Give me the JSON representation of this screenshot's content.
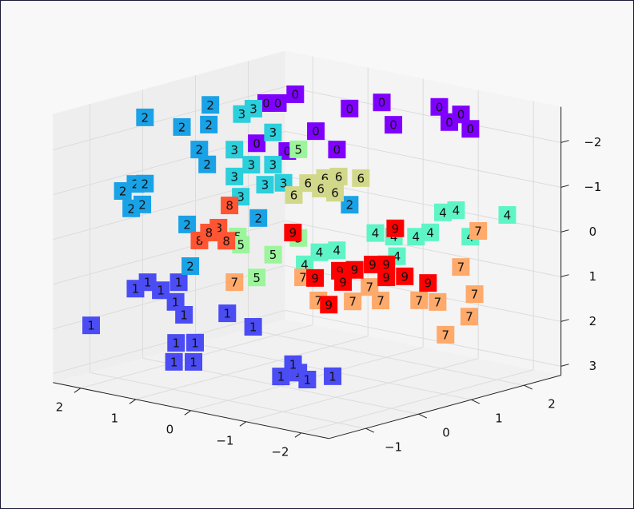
{
  "chart_data": {
    "type": "scatter3d",
    "xlim": [
      -2.5,
      2.5
    ],
    "ylim": [
      -1.7,
      2.7
    ],
    "zlim": [
      -2.8,
      3.2
    ],
    "z_inverted": true,
    "grid": true,
    "xticks": [
      {
        "value": -2,
        "label": "−2"
      },
      {
        "value": -1,
        "label": "−1"
      },
      0,
      1,
      2
    ],
    "yticks": [
      {
        "value": -1,
        "label": "−1"
      },
      0,
      1,
      2
    ],
    "zticks": [
      {
        "value": -2,
        "label": "−2"
      },
      {
        "value": -1,
        "label": "−1"
      },
      0,
      1,
      2,
      3
    ],
    "series": [
      {
        "name": "0",
        "color": "#8000ff",
        "x": [
          0.5,
          0.5,
          0.5,
          0.5,
          0.5,
          0.5,
          0.5,
          0.5,
          0.5,
          0.5,
          0.5,
          0.5,
          0.5,
          0.5
        ],
        "y": [
          0.25,
          0.47,
          0.8,
          1.83,
          2.44,
          2.66,
          3.53,
          3.72,
          3.94,
          4.12,
          1.19,
          1.59,
          0.65,
          0.07
        ],
        "z": [
          -2.92,
          -2.85,
          -2.94,
          -2.29,
          -2.23,
          -1.66,
          -1.78,
          -1.38,
          -1.48,
          -1.1,
          -1.99,
          -1.45,
          -1.72,
          -2.08
        ]
      },
      {
        "name": "1",
        "color": "#4b4cf4",
        "x": [
          2,
          2,
          2,
          2,
          2,
          2,
          2,
          2,
          2,
          2,
          2,
          2,
          2,
          -1,
          -1,
          -1,
          -1,
          -1
        ],
        "y": [
          -1.5,
          -0.66,
          -0.43,
          -0.18,
          0.16,
          0.1,
          0.26,
          0.11,
          0.47,
          0.07,
          0.44,
          1.08,
          1.57,
          -1.04,
          -0.71,
          -0.54,
          -0.06,
          -0.81
        ],
        "z": [
          1.86,
          1.31,
          1.24,
          1.5,
          1.43,
          1.85,
          2.19,
          2.77,
          2.88,
          3.18,
          3.3,
          2.42,
          2.88,
          2.4,
          2.42,
          2.63,
          2.71,
          2.2
        ]
      },
      {
        "name": "2",
        "color": "#1aa2e6",
        "x": [
          2,
          2,
          2,
          2,
          2,
          2,
          2,
          2,
          2,
          2,
          2,
          2,
          2,
          2,
          2
        ],
        "y": [
          -0.48,
          0.22,
          0.76,
          0.73,
          0.55,
          0.7,
          -0.9,
          -0.66,
          -0.48,
          -0.74,
          -0.53,
          0.32,
          0.38,
          1.67,
          3.4
        ],
        "z": [
          -2.46,
          -2.02,
          -2.34,
          -1.91,
          -1.41,
          -1.03,
          -0.95,
          -1.03,
          -0.98,
          -0.51,
          -0.53,
          0.19,
          1.14,
          0.48,
          0.74
        ]
      },
      {
        "name": "3",
        "color": "#2ccfdc",
        "x": [
          1,
          1,
          1,
          1,
          1,
          1,
          1,
          1,
          1,
          1
        ],
        "y": [
          0.31,
          0.53,
          0.9,
          0.17,
          0.49,
          0.9,
          0.17,
          0.75,
          1.1,
          0.29
        ],
        "z": [
          -2.53,
          -2.58,
          -1.93,
          -1.78,
          -1.34,
          -1.21,
          -1.18,
          -0.81,
          -0.74,
          -0.69
        ]
      },
      {
        "name": "4",
        "color": "#5ef5c6",
        "x": [
          -1,
          -1,
          -1,
          -1,
          -1,
          -1,
          -1,
          -1,
          -1,
          -1,
          -1,
          -1
        ],
        "y": [
          0.75,
          1.1,
          1.52,
          1.79,
          2.03,
          2.28,
          2.55,
          3.25,
          0.02,
          -0.31,
          -0.59,
          1.16
        ],
        "z": [
          -0.23,
          -0.04,
          0.1,
          0.09,
          -0.28,
          -0.25,
          0.43,
          0.17,
          -0.08,
          -0.14,
          0.04,
          0.42
        ]
      },
      {
        "name": "5",
        "color": "#9cf59c",
        "x": [
          0.5,
          0.5,
          0.5,
          0.5,
          0.5,
          0.5
        ],
        "y": [
          0.86,
          -0.29,
          -0.23,
          0.38,
          0.07,
          0.86
        ],
        "z": [
          -1.69,
          -0.11,
          0.09,
          0.51,
          0.92,
          0.29
        ]
      },
      {
        "name": "6",
        "color": "#d2d88a",
        "x": [
          0,
          0,
          0,
          0,
          0,
          0,
          0
        ],
        "y": [
          0.25,
          0.52,
          0.84,
          1.1,
          1.52,
          0.76,
          1.03
        ],
        "z": [
          -0.99,
          -1.17,
          -1.18,
          -1.13,
          -0.96,
          -0.97,
          -0.79
        ]
      },
      {
        "name": "7",
        "color": "#ffa96a",
        "x": [
          -1,
          -1,
          -1,
          -1,
          -1,
          -1,
          -1,
          -1,
          -1,
          -1,
          -1,
          -1,
          -1
        ],
        "y": [
          -1.92,
          -0.62,
          -0.33,
          0.32,
          0.64,
          0.85,
          1.58,
          1.93,
          2.37,
          2.7,
          2.63,
          2.53,
          2.08
        ],
        "z": [
          0.01,
          0.32,
          0.93,
          1.16,
          0.94,
          1.31,
          1.54,
          1.69,
          1.05,
          0.35,
          1.74,
          2.21,
          2.47
        ]
      },
      {
        "name": "8",
        "color": "#ff5533",
        "x": [
          1.5,
          1.5,
          1.5,
          1.5,
          1.5
        ],
        "y": [
          0.6,
          0.39,
          0.03,
          0.21,
          0.54
        ],
        "z": [
          -0.27,
          0.16,
          0.33,
          0.21,
          0.5
        ]
      },
      {
        "name": "9",
        "color": "#ff0000",
        "x": [
          -0.5,
          -0.5,
          -0.5,
          -0.5,
          -0.5,
          -0.5,
          -0.5,
          -0.5,
          -0.5,
          -0.5,
          -0.5,
          -0.5
        ],
        "y": [
          -0.29,
          0.6,
          0.88,
          0.66,
          1.22,
          1.48,
          1.48,
          1.83,
          2.27,
          0.13,
          0.39,
          1.65
        ],
        "z": [
          -0.45,
          0.69,
          0.76,
          0.96,
          0.75,
          0.83,
          1.12,
          1.21,
          1.5,
          0.7,
          1.38,
          0.08
        ]
      }
    ]
  }
}
